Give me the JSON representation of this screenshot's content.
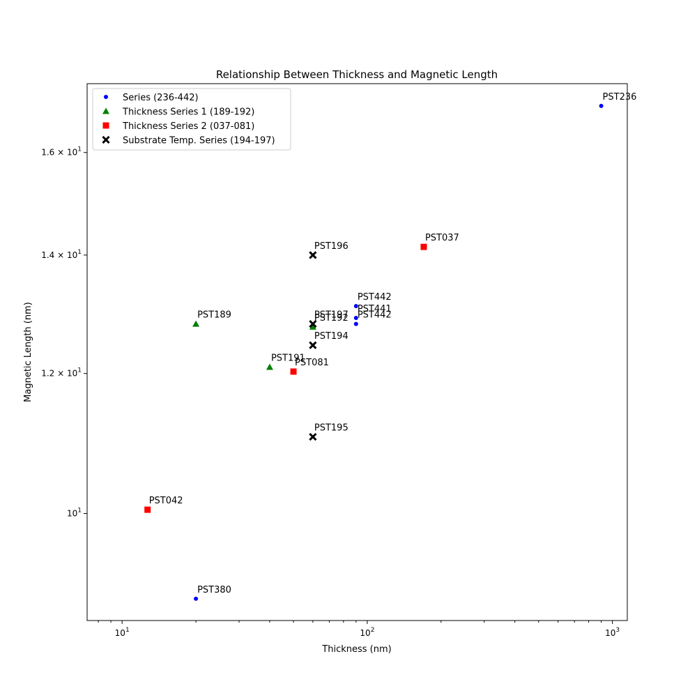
{
  "chart_data": {
    "type": "scatter",
    "title": "Relationship Between Thickness and Magnetic Length",
    "xlabel": "Thickness (nm)",
    "ylabel": "Magnetic Length (nm)",
    "xscale": "log",
    "yscale": "log",
    "xlim": [
      7.2,
      1150
    ],
    "ylim": [
      8.7,
      17.5
    ],
    "x_ticks": [
      {
        "value": 10,
        "label": "10",
        "exp": "1"
      },
      {
        "value": 100,
        "label": "10",
        "exp": "2"
      },
      {
        "value": 1000,
        "label": "10",
        "exp": "3"
      }
    ],
    "y_ticks": [
      {
        "value": 10,
        "label": "10",
        "exp": "1"
      },
      {
        "value": 12,
        "label": "1.2 × 10",
        "exp": "1"
      },
      {
        "value": 14,
        "label": "1.4 × 10",
        "exp": "1"
      },
      {
        "value": 16,
        "label": "1.6 × 10",
        "exp": "1"
      }
    ],
    "grid": false,
    "legend_position": "upper-left",
    "series": [
      {
        "name": "Series (236-442)",
        "marker": "circle",
        "color": "#0000ff",
        "points": [
          {
            "label": "PST236",
            "x": 900,
            "y": 17.0
          },
          {
            "label": "PST442",
            "x": 90,
            "y": 13.1
          },
          {
            "label": "PST441",
            "x": 90,
            "y": 12.9
          },
          {
            "label": "PST442",
            "x": 90,
            "y": 12.8
          },
          {
            "label": "PST380",
            "x": 20,
            "y": 8.95
          }
        ]
      },
      {
        "name": "Thickness Series 1 (189-192)",
        "marker": "triangle",
        "color": "#008000",
        "points": [
          {
            "label": "PST189",
            "x": 20,
            "y": 12.8
          },
          {
            "label": "PST192",
            "x": 60,
            "y": 12.75
          },
          {
            "label": "PST191",
            "x": 40,
            "y": 12.1
          }
        ]
      },
      {
        "name": "Thickness Series 2 (037-081)",
        "marker": "square",
        "color": "#ff0000",
        "points": [
          {
            "label": "PST037",
            "x": 170,
            "y": 14.15
          },
          {
            "label": "PST081",
            "x": 50,
            "y": 12.03
          },
          {
            "label": "PST042",
            "x": 12.7,
            "y": 10.05
          }
        ]
      },
      {
        "name": "Substrate Temp. Series (194-197)",
        "marker": "x",
        "color": "#000000",
        "points": [
          {
            "label": "PST196",
            "x": 60,
            "y": 14.0
          },
          {
            "label": "PST197",
            "x": 60,
            "y": 12.8
          },
          {
            "label": "PST194",
            "x": 60,
            "y": 12.45
          },
          {
            "label": "PST195",
            "x": 60,
            "y": 11.05
          }
        ]
      }
    ]
  }
}
